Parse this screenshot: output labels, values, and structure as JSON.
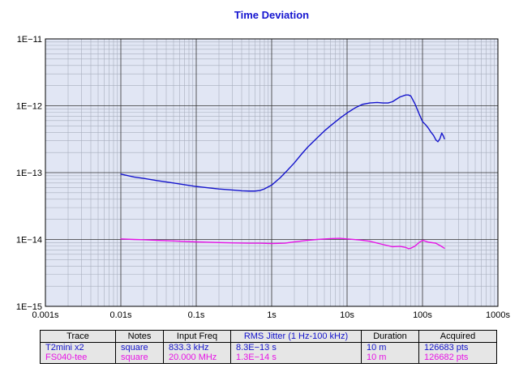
{
  "chart_data": {
    "type": "line",
    "title": "Time Deviation",
    "xlabel": "",
    "ylabel": "",
    "x_scale": "log",
    "y_scale": "log",
    "xlim": [
      0.001,
      1000
    ],
    "ylim": [
      1e-15,
      1e-11
    ],
    "grid": true,
    "x_ticks": [
      {
        "value": 0.001,
        "label": "0.001s"
      },
      {
        "value": 0.01,
        "label": "0.01s"
      },
      {
        "value": 0.1,
        "label": "0.1s"
      },
      {
        "value": 1,
        "label": "1s"
      },
      {
        "value": 10,
        "label": "10s"
      },
      {
        "value": 100,
        "label": "100s"
      },
      {
        "value": 1000,
        "label": "1000s"
      }
    ],
    "y_ticks": [
      {
        "value": 1e-11,
        "label": "1E−11"
      },
      {
        "value": 1e-12,
        "label": "1E−12"
      },
      {
        "value": 1e-13,
        "label": "1E−13"
      },
      {
        "value": 1e-14,
        "label": "1E−14"
      },
      {
        "value": 1e-15,
        "label": "1E−15"
      }
    ],
    "series": [
      {
        "name": "T2mini x2",
        "color": "#1414cc",
        "points": [
          [
            0.01,
            9.5e-14
          ],
          [
            0.012,
            9.1e-14
          ],
          [
            0.015,
            8.6e-14
          ],
          [
            0.02,
            8.2e-14
          ],
          [
            0.03,
            7.6e-14
          ],
          [
            0.05,
            7e-14
          ],
          [
            0.07,
            6.6e-14
          ],
          [
            0.1,
            6.2e-14
          ],
          [
            0.15,
            5.9e-14
          ],
          [
            0.2,
            5.7e-14
          ],
          [
            0.3,
            5.5e-14
          ],
          [
            0.4,
            5.35e-14
          ],
          [
            0.5,
            5.3e-14
          ],
          [
            0.6,
            5.3e-14
          ],
          [
            0.7,
            5.4e-14
          ],
          [
            0.8,
            5.7e-14
          ],
          [
            1.0,
            6.5e-14
          ],
          [
            1.3,
            8.4e-14
          ],
          [
            1.6,
            1.07e-13
          ],
          [
            2.0,
            1.4e-13
          ],
          [
            2.5,
            1.9e-13
          ],
          [
            3.0,
            2.4e-13
          ],
          [
            4.0,
            3.3e-13
          ],
          [
            5.0,
            4.2e-13
          ],
          [
            6.0,
            5e-13
          ],
          [
            8.0,
            6.5e-13
          ],
          [
            10,
            7.8e-13
          ],
          [
            13,
            9.4e-13
          ],
          [
            16,
            1.05e-12
          ],
          [
            20,
            1.1e-12
          ],
          [
            25,
            1.12e-12
          ],
          [
            30,
            1.1e-12
          ],
          [
            35,
            1.1e-12
          ],
          [
            40,
            1.15e-12
          ],
          [
            50,
            1.35e-12
          ],
          [
            60,
            1.45e-12
          ],
          [
            65,
            1.45e-12
          ],
          [
            70,
            1.4e-12
          ],
          [
            80,
            1.05e-12
          ],
          [
            90,
            7.6e-13
          ],
          [
            100,
            5.8e-13
          ],
          [
            110,
            5.2e-13
          ],
          [
            120,
            4.6e-13
          ],
          [
            130,
            4e-13
          ],
          [
            140,
            3.6e-13
          ],
          [
            150,
            3.1e-13
          ],
          [
            160,
            2.9e-13
          ],
          [
            170,
            3.2e-13
          ],
          [
            180,
            3.9e-13
          ],
          [
            190,
            3.5e-13
          ],
          [
            195,
            3.2e-13
          ]
        ]
      },
      {
        "name": "FS040-tee",
        "color": "#e614e6",
        "points": [
          [
            0.01,
            1.02e-14
          ],
          [
            0.015,
            1e-14
          ],
          [
            0.02,
            9.9e-15
          ],
          [
            0.03,
            9.7e-15
          ],
          [
            0.05,
            9.5e-15
          ],
          [
            0.1,
            9.2e-15
          ],
          [
            0.2,
            9e-15
          ],
          [
            0.3,
            8.9e-15
          ],
          [
            0.5,
            8.8e-15
          ],
          [
            0.7,
            8.8e-15
          ],
          [
            1.0,
            8.7e-15
          ],
          [
            1.5,
            8.8e-15
          ],
          [
            2.0,
            9.2e-15
          ],
          [
            3.0,
            9.7e-15
          ],
          [
            4.0,
            1e-14
          ],
          [
            6.0,
            1.03e-14
          ],
          [
            8.0,
            1.04e-14
          ],
          [
            10,
            1.02e-14
          ],
          [
            15,
            9.8e-15
          ],
          [
            20,
            9.4e-15
          ],
          [
            30,
            8.4e-15
          ],
          [
            40,
            7.8e-15
          ],
          [
            50,
            7.9e-15
          ],
          [
            60,
            7.6e-15
          ],
          [
            65,
            7.3e-15
          ],
          [
            70,
            7.4e-15
          ],
          [
            80,
            8e-15
          ],
          [
            90,
            9e-15
          ],
          [
            100,
            9.7e-15
          ],
          [
            110,
            9.4e-15
          ],
          [
            120,
            9.1e-15
          ],
          [
            150,
            8.8e-15
          ],
          [
            175,
            8e-15
          ],
          [
            195,
            7.4e-15
          ]
        ]
      }
    ]
  },
  "legend_table": {
    "headers": [
      "Trace",
      "Notes",
      "Input Freq",
      "RMS Jitter (1 Hz-100 kHz)",
      "Duration",
      "Acquired"
    ],
    "header_colors": [
      "#000000",
      "#000000",
      "#000000",
      "#1414cc",
      "#000000",
      "#000000"
    ],
    "rows": [
      {
        "color": "#1414cc",
        "cells": [
          "T2mini x2",
          "square",
          "833.3 kHz",
          "8.3E−13 s",
          "10 m",
          "126683 pts"
        ]
      },
      {
        "color": "#e614e6",
        "cells": [
          "FS040-tee",
          "square",
          "20.000 MHz",
          "1.3E−14 s",
          "10 m",
          "126682 pts"
        ]
      }
    ]
  }
}
